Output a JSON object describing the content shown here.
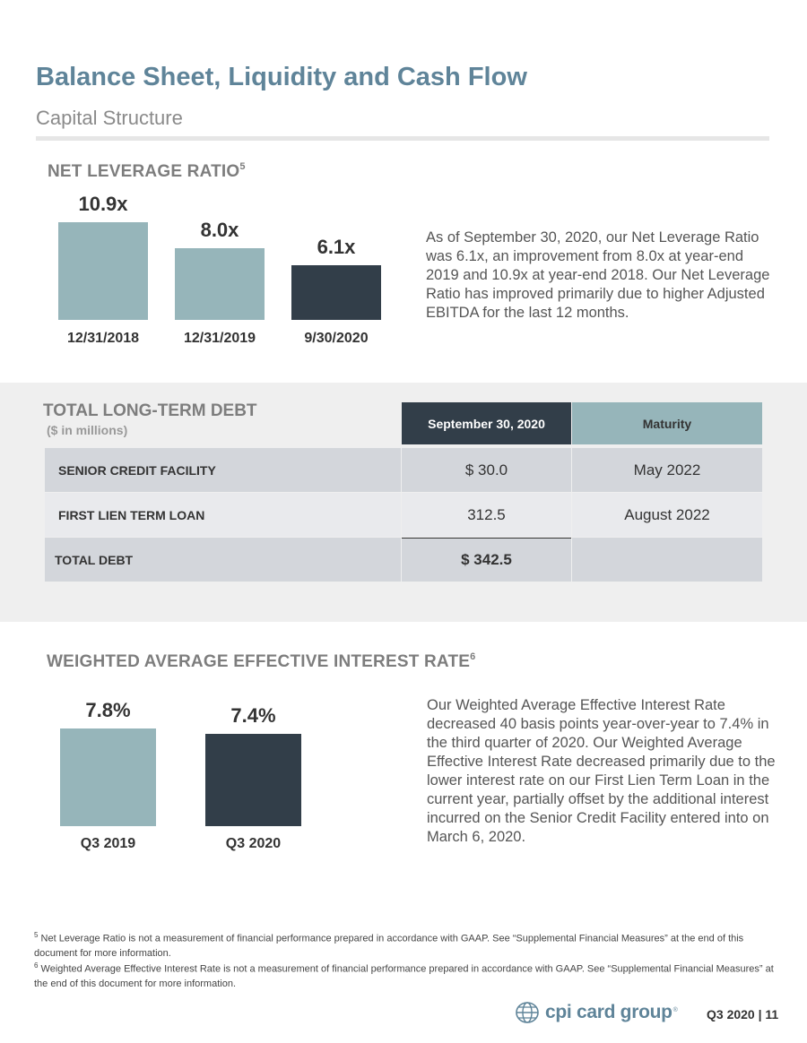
{
  "header": {
    "title": "Balance Sheet, Liquidity and Cash Flow",
    "subtitle": "Capital Structure"
  },
  "leverage": {
    "heading": "NET LEVERAGE RATIO",
    "footnote_ref": "5",
    "paragraph": "As of September 30, 2020, our Net Leverage Ratio was 6.1x, an improvement from 8.0x at year-end 2019 and 10.9x at year-end 2018. Our Net Leverage Ratio has improved primarily due to higher Adjusted EBITDA for the last 12 months."
  },
  "debt": {
    "title": "TOTAL LONG-TERM DEBT",
    "unit_note": "($ in millions)",
    "headers": [
      "September 30, 2020",
      "Maturity"
    ],
    "rows": [
      {
        "label": "SENIOR CREDIT FACILITY",
        "amount": "$ 30.0",
        "maturity": "May 2022"
      },
      {
        "label": "FIRST LIEN TERM LOAN",
        "amount": "312.5",
        "maturity": "August 2022"
      },
      {
        "label": "TOTAL DEBT",
        "amount": "$ 342.5",
        "maturity": ""
      }
    ]
  },
  "interest": {
    "heading": "WEIGHTED AVERAGE EFFECTIVE INTEREST RATE",
    "footnote_ref": "6",
    "paragraph": "Our Weighted Average Effective Interest Rate decreased 40 basis points year-over-year to 7.4% in the third quarter of 2020. Our Weighted Average Effective Interest Rate decreased primarily due to the lower interest rate on our First Lien Term Loan in the current year, partially offset by the additional interest incurred on the Senior Credit Facility entered into on March 6, 2020."
  },
  "chart_data": [
    {
      "type": "bar",
      "title": "NET LEVERAGE RATIO",
      "categories": [
        "12/31/2018",
        "12/31/2019",
        "9/30/2020"
      ],
      "values": [
        10.9,
        8.0,
        6.1
      ],
      "value_labels": [
        "10.9x",
        "8.0x",
        "6.1x"
      ],
      "colors": [
        "#96b5ba",
        "#96b5ba",
        "#323e49"
      ],
      "ylim": [
        0,
        10.9
      ],
      "grid": false
    },
    {
      "type": "bar",
      "title": "WEIGHTED AVERAGE EFFECTIVE INTEREST RATE",
      "categories": [
        "Q3 2019",
        "Q3 2020"
      ],
      "values": [
        7.8,
        7.4
      ],
      "value_labels": [
        "7.8%",
        "7.4%"
      ],
      "colors": [
        "#96b5ba",
        "#323e49"
      ],
      "ylim": [
        0,
        7.8
      ],
      "grid": false
    }
  ],
  "footnotes": [
    {
      "num": "5",
      "text": "Net Leverage Ratio is not a measurement of financial performance prepared in accordance with GAAP. See “Supplemental Financial Measures” at the end of this document for more information."
    },
    {
      "num": "6",
      "text": "Weighted Average Effective Interest Rate is not a measurement of financial performance prepared in accordance with GAAP. See “Supplemental Financial Measures” at the end of this document for more information."
    }
  ],
  "footer": {
    "logo_text": "cpi card group",
    "logo_mark": "®",
    "logo_icon": "globe-icon",
    "page_label": "Q3 2020 | 11"
  }
}
